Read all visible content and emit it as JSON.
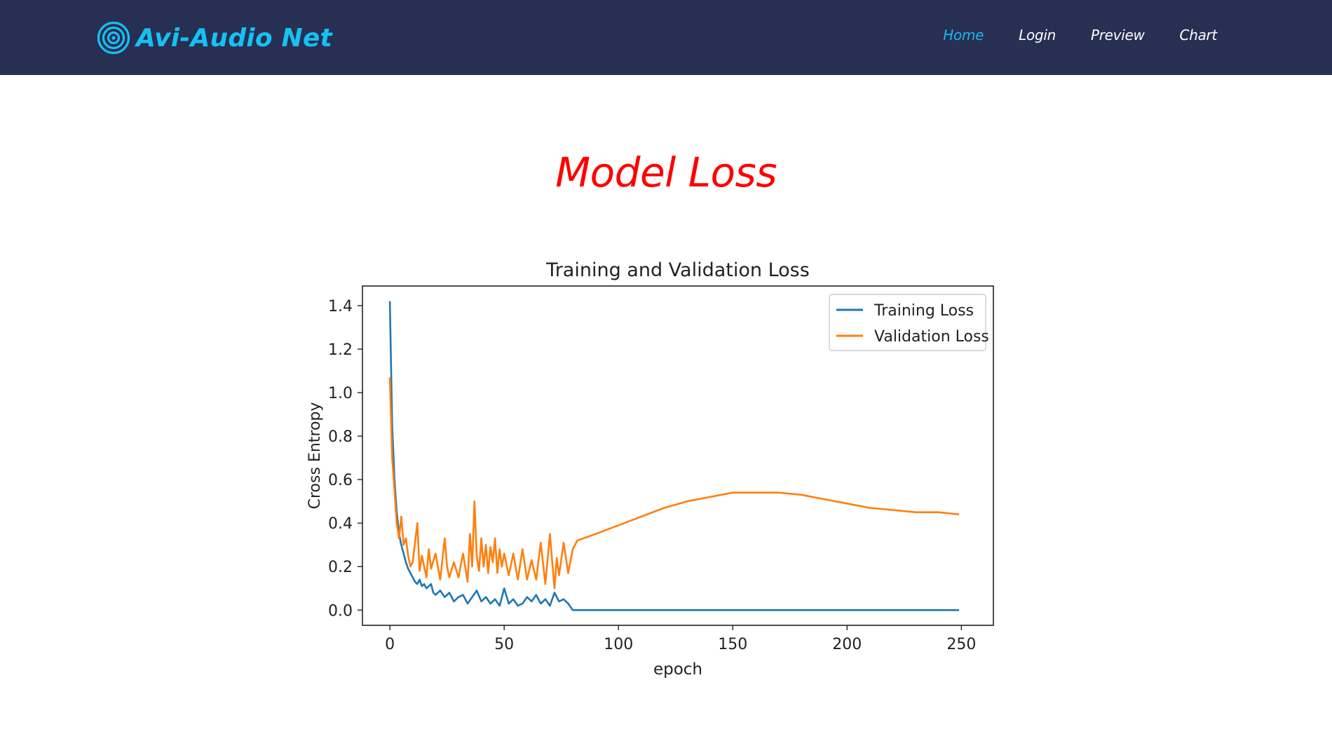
{
  "nav": {
    "brand": "Avi-Audio Net",
    "brand_icon": "concentric-circles-logo-icon",
    "links": [
      {
        "label": "Home",
        "active": true
      },
      {
        "label": "Login",
        "active": false
      },
      {
        "label": "Preview",
        "active": false
      },
      {
        "label": "Chart",
        "active": false
      }
    ]
  },
  "page": {
    "heading": "Model Loss"
  },
  "colors": {
    "navbar_bg": "#272f52",
    "brand": "#16c1f3",
    "active_link": "#19b6ee",
    "heading": "#ff0000",
    "training": "#1f77b4",
    "validation": "#ff7f0e"
  },
  "chart_data": {
    "type": "line",
    "title": "Training and Validation Loss",
    "xlabel": "epoch",
    "ylabel": "Cross Entropy",
    "xlim": [
      -12,
      264
    ],
    "ylim": [
      -0.07,
      1.49
    ],
    "xticks": [
      0,
      50,
      100,
      150,
      200,
      250
    ],
    "xtick_labels": [
      "0",
      "50",
      "100",
      "150",
      "200",
      "250"
    ],
    "yticks": [
      0.0,
      0.2,
      0.4,
      0.6,
      0.8,
      1.0,
      1.2,
      1.4
    ],
    "ytick_labels": [
      "0.0",
      "0.2",
      "0.4",
      "0.6",
      "0.8",
      "1.0",
      "1.2",
      "1.4"
    ],
    "grid": false,
    "legend_position": "top-right",
    "series": [
      {
        "name": "Training Loss",
        "color": "#1f77b4",
        "x": [
          0,
          1,
          2,
          3,
          4,
          5,
          6,
          7,
          8,
          9,
          10,
          11,
          12,
          13,
          14,
          15,
          16,
          17,
          18,
          19,
          20,
          22,
          24,
          26,
          28,
          30,
          32,
          34,
          36,
          38,
          40,
          42,
          44,
          46,
          48,
          50,
          52,
          54,
          56,
          58,
          60,
          62,
          64,
          66,
          68,
          70,
          72,
          74,
          76,
          78,
          80,
          100,
          150,
          200,
          249
        ],
        "y": [
          1.42,
          0.85,
          0.6,
          0.45,
          0.35,
          0.3,
          0.26,
          0.22,
          0.19,
          0.17,
          0.15,
          0.13,
          0.12,
          0.14,
          0.11,
          0.12,
          0.1,
          0.11,
          0.12,
          0.08,
          0.07,
          0.09,
          0.06,
          0.08,
          0.04,
          0.06,
          0.07,
          0.03,
          0.06,
          0.09,
          0.04,
          0.06,
          0.03,
          0.05,
          0.02,
          0.1,
          0.03,
          0.05,
          0.02,
          0.03,
          0.06,
          0.04,
          0.07,
          0.03,
          0.05,
          0.02,
          0.08,
          0.04,
          0.05,
          0.03,
          0.0,
          0.0,
          0.0,
          0.0,
          0.0
        ]
      },
      {
        "name": "Validation Loss",
        "color": "#ff7f0e",
        "x": [
          0,
          1,
          2,
          3,
          4,
          5,
          6,
          7,
          8,
          9,
          10,
          12,
          13,
          14,
          16,
          17,
          18,
          20,
          22,
          24,
          25,
          26,
          28,
          30,
          32,
          34,
          35,
          36,
          37,
          38,
          39,
          40,
          41,
          42,
          43,
          44,
          45,
          46,
          47,
          48,
          49,
          50,
          52,
          54,
          56,
          58,
          60,
          62,
          64,
          66,
          68,
          70,
          72,
          73,
          74,
          76,
          78,
          80,
          82,
          90,
          100,
          110,
          120,
          130,
          140,
          150,
          160,
          170,
          180,
          190,
          200,
          210,
          220,
          230,
          240,
          249
        ],
        "y": [
          1.07,
          0.7,
          0.55,
          0.4,
          0.33,
          0.43,
          0.3,
          0.33,
          0.25,
          0.2,
          0.22,
          0.4,
          0.18,
          0.25,
          0.15,
          0.28,
          0.19,
          0.26,
          0.14,
          0.33,
          0.2,
          0.15,
          0.22,
          0.15,
          0.26,
          0.13,
          0.35,
          0.2,
          0.5,
          0.25,
          0.18,
          0.33,
          0.2,
          0.3,
          0.17,
          0.29,
          0.22,
          0.33,
          0.17,
          0.28,
          0.2,
          0.26,
          0.16,
          0.26,
          0.14,
          0.28,
          0.14,
          0.23,
          0.14,
          0.31,
          0.12,
          0.35,
          0.1,
          0.24,
          0.16,
          0.31,
          0.17,
          0.28,
          0.32,
          0.35,
          0.39,
          0.43,
          0.47,
          0.5,
          0.52,
          0.54,
          0.54,
          0.54,
          0.53,
          0.51,
          0.49,
          0.47,
          0.46,
          0.45,
          0.45,
          0.44
        ]
      }
    ]
  }
}
